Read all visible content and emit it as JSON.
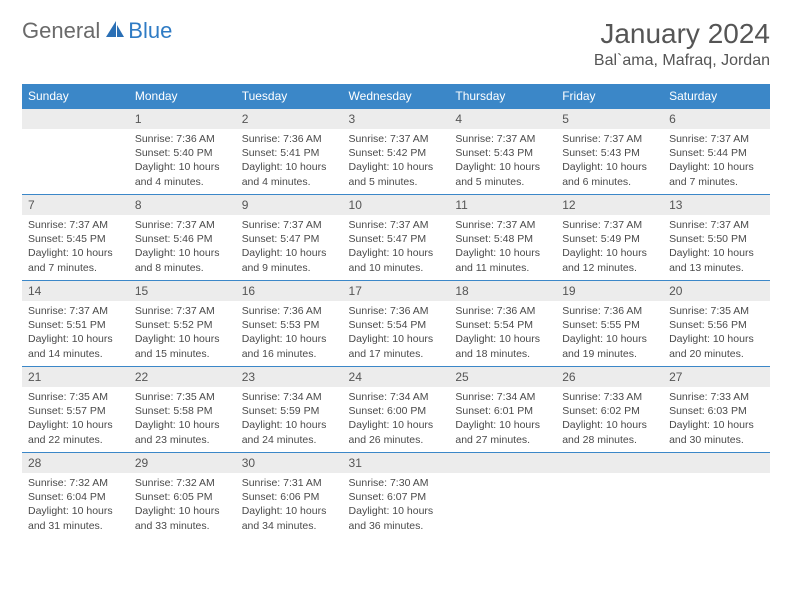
{
  "brand": {
    "general": "General",
    "blue": "Blue"
  },
  "title": {
    "month": "January 2024",
    "location": "Bal`ama, Mafraq, Jordan"
  },
  "colors": {
    "header_bg": "#3b87c8",
    "header_text": "#ffffff",
    "daynum_bg": "#ececec",
    "row_border": "#3b87c8",
    "body_text": "#4a4a4a",
    "brand_gray": "#6a6a6a",
    "brand_blue": "#2f7bc4"
  },
  "weekdays": [
    "Sunday",
    "Monday",
    "Tuesday",
    "Wednesday",
    "Thursday",
    "Friday",
    "Saturday"
  ],
  "weeks": [
    [
      {
        "n": "",
        "sr": "",
        "ss": "",
        "dl": ""
      },
      {
        "n": "1",
        "sr": "Sunrise: 7:36 AM",
        "ss": "Sunset: 5:40 PM",
        "dl": "Daylight: 10 hours and 4 minutes."
      },
      {
        "n": "2",
        "sr": "Sunrise: 7:36 AM",
        "ss": "Sunset: 5:41 PM",
        "dl": "Daylight: 10 hours and 4 minutes."
      },
      {
        "n": "3",
        "sr": "Sunrise: 7:37 AM",
        "ss": "Sunset: 5:42 PM",
        "dl": "Daylight: 10 hours and 5 minutes."
      },
      {
        "n": "4",
        "sr": "Sunrise: 7:37 AM",
        "ss": "Sunset: 5:43 PM",
        "dl": "Daylight: 10 hours and 5 minutes."
      },
      {
        "n": "5",
        "sr": "Sunrise: 7:37 AM",
        "ss": "Sunset: 5:43 PM",
        "dl": "Daylight: 10 hours and 6 minutes."
      },
      {
        "n": "6",
        "sr": "Sunrise: 7:37 AM",
        "ss": "Sunset: 5:44 PM",
        "dl": "Daylight: 10 hours and 7 minutes."
      }
    ],
    [
      {
        "n": "7",
        "sr": "Sunrise: 7:37 AM",
        "ss": "Sunset: 5:45 PM",
        "dl": "Daylight: 10 hours and 7 minutes."
      },
      {
        "n": "8",
        "sr": "Sunrise: 7:37 AM",
        "ss": "Sunset: 5:46 PM",
        "dl": "Daylight: 10 hours and 8 minutes."
      },
      {
        "n": "9",
        "sr": "Sunrise: 7:37 AM",
        "ss": "Sunset: 5:47 PM",
        "dl": "Daylight: 10 hours and 9 minutes."
      },
      {
        "n": "10",
        "sr": "Sunrise: 7:37 AM",
        "ss": "Sunset: 5:47 PM",
        "dl": "Daylight: 10 hours and 10 minutes."
      },
      {
        "n": "11",
        "sr": "Sunrise: 7:37 AM",
        "ss": "Sunset: 5:48 PM",
        "dl": "Daylight: 10 hours and 11 minutes."
      },
      {
        "n": "12",
        "sr": "Sunrise: 7:37 AM",
        "ss": "Sunset: 5:49 PM",
        "dl": "Daylight: 10 hours and 12 minutes."
      },
      {
        "n": "13",
        "sr": "Sunrise: 7:37 AM",
        "ss": "Sunset: 5:50 PM",
        "dl": "Daylight: 10 hours and 13 minutes."
      }
    ],
    [
      {
        "n": "14",
        "sr": "Sunrise: 7:37 AM",
        "ss": "Sunset: 5:51 PM",
        "dl": "Daylight: 10 hours and 14 minutes."
      },
      {
        "n": "15",
        "sr": "Sunrise: 7:37 AM",
        "ss": "Sunset: 5:52 PM",
        "dl": "Daylight: 10 hours and 15 minutes."
      },
      {
        "n": "16",
        "sr": "Sunrise: 7:36 AM",
        "ss": "Sunset: 5:53 PM",
        "dl": "Daylight: 10 hours and 16 minutes."
      },
      {
        "n": "17",
        "sr": "Sunrise: 7:36 AM",
        "ss": "Sunset: 5:54 PM",
        "dl": "Daylight: 10 hours and 17 minutes."
      },
      {
        "n": "18",
        "sr": "Sunrise: 7:36 AM",
        "ss": "Sunset: 5:54 PM",
        "dl": "Daylight: 10 hours and 18 minutes."
      },
      {
        "n": "19",
        "sr": "Sunrise: 7:36 AM",
        "ss": "Sunset: 5:55 PM",
        "dl": "Daylight: 10 hours and 19 minutes."
      },
      {
        "n": "20",
        "sr": "Sunrise: 7:35 AM",
        "ss": "Sunset: 5:56 PM",
        "dl": "Daylight: 10 hours and 20 minutes."
      }
    ],
    [
      {
        "n": "21",
        "sr": "Sunrise: 7:35 AM",
        "ss": "Sunset: 5:57 PM",
        "dl": "Daylight: 10 hours and 22 minutes."
      },
      {
        "n": "22",
        "sr": "Sunrise: 7:35 AM",
        "ss": "Sunset: 5:58 PM",
        "dl": "Daylight: 10 hours and 23 minutes."
      },
      {
        "n": "23",
        "sr": "Sunrise: 7:34 AM",
        "ss": "Sunset: 5:59 PM",
        "dl": "Daylight: 10 hours and 24 minutes."
      },
      {
        "n": "24",
        "sr": "Sunrise: 7:34 AM",
        "ss": "Sunset: 6:00 PM",
        "dl": "Daylight: 10 hours and 26 minutes."
      },
      {
        "n": "25",
        "sr": "Sunrise: 7:34 AM",
        "ss": "Sunset: 6:01 PM",
        "dl": "Daylight: 10 hours and 27 minutes."
      },
      {
        "n": "26",
        "sr": "Sunrise: 7:33 AM",
        "ss": "Sunset: 6:02 PM",
        "dl": "Daylight: 10 hours and 28 minutes."
      },
      {
        "n": "27",
        "sr": "Sunrise: 7:33 AM",
        "ss": "Sunset: 6:03 PM",
        "dl": "Daylight: 10 hours and 30 minutes."
      }
    ],
    [
      {
        "n": "28",
        "sr": "Sunrise: 7:32 AM",
        "ss": "Sunset: 6:04 PM",
        "dl": "Daylight: 10 hours and 31 minutes."
      },
      {
        "n": "29",
        "sr": "Sunrise: 7:32 AM",
        "ss": "Sunset: 6:05 PM",
        "dl": "Daylight: 10 hours and 33 minutes."
      },
      {
        "n": "30",
        "sr": "Sunrise: 7:31 AM",
        "ss": "Sunset: 6:06 PM",
        "dl": "Daylight: 10 hours and 34 minutes."
      },
      {
        "n": "31",
        "sr": "Sunrise: 7:30 AM",
        "ss": "Sunset: 6:07 PM",
        "dl": "Daylight: 10 hours and 36 minutes."
      },
      {
        "n": "",
        "sr": "",
        "ss": "",
        "dl": ""
      },
      {
        "n": "",
        "sr": "",
        "ss": "",
        "dl": ""
      },
      {
        "n": "",
        "sr": "",
        "ss": "",
        "dl": ""
      }
    ]
  ]
}
